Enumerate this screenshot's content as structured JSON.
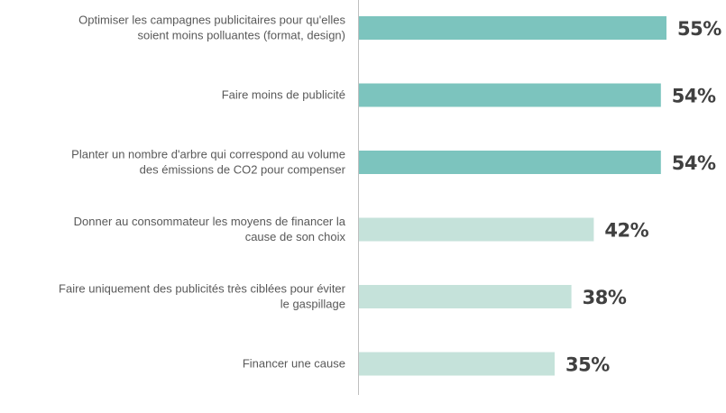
{
  "colors": {
    "highlight": "#7cc4be",
    "muted": "#c5e2da",
    "axis": "#bfbfbf",
    "label": "#595959",
    "value": "#404040"
  },
  "chart_data": {
    "type": "bar",
    "orientation": "horizontal",
    "title": "",
    "xlabel": "",
    "ylabel": "",
    "grid": false,
    "xlim": [
      0,
      100
    ],
    "value_suffix": "%",
    "categories": [
      [
        "Optimiser les campagnes publicitaires pour qu'elles",
        "soient moins polluantes (format, design)"
      ],
      [
        "Faire moins de publicité"
      ],
      [
        "Planter un nombre d'arbre qui correspond au volume",
        "des émissions de CO2 pour compenser"
      ],
      [
        "Donner au consommateur les moyens de financer la",
        "cause de son choix"
      ],
      [
        "Faire uniquement des publicités très ciblées pour éviter",
        "le gaspillage"
      ],
      [
        "Financer une cause"
      ]
    ],
    "values": [
      55,
      54,
      54,
      42,
      38,
      35
    ],
    "value_labels": [
      "55%",
      "54%",
      "54%",
      "42%",
      "38%",
      "35%"
    ],
    "highlight": [
      true,
      true,
      true,
      false,
      false,
      false
    ]
  }
}
